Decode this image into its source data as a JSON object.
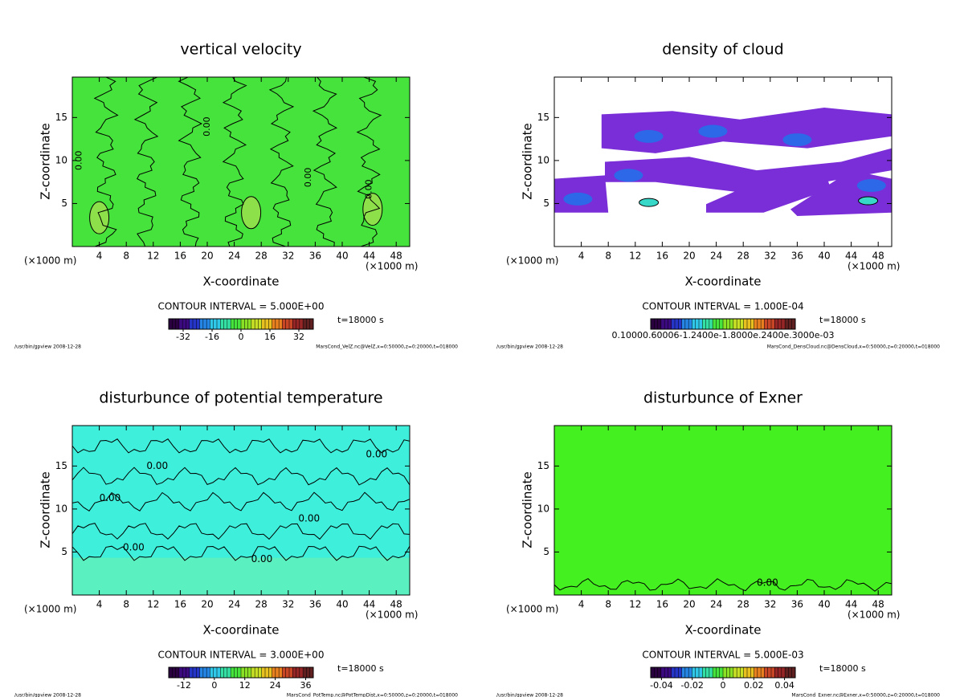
{
  "chart_data": [
    {
      "type": "contour",
      "title": "vertical velocity",
      "xlabel": "X-coordinate",
      "ylabel": "Z-coordinate",
      "x_unit_label": "(×1000 m)",
      "xlim": [
        0,
        50
      ],
      "xticks": [
        4,
        8,
        12,
        16,
        20,
        24,
        28,
        32,
        36,
        40,
        44,
        48
      ],
      "ylim": [
        0,
        19.7
      ],
      "yticks": [
        5,
        10,
        15
      ],
      "field_color": "#46e33c",
      "contour_label": "0.00",
      "contour_interval": "CONTOUR INTERVAL = 5.000E+00",
      "time_label": "t=18000 s",
      "colorbar": {
        "clim": [
          -40,
          40
        ],
        "ticks": [
          -32,
          -16,
          0,
          16,
          32
        ],
        "colors": [
          "#2a0040",
          "#3c0a80",
          "#2535c8",
          "#2585e5",
          "#30c8e8",
          "#35e0a5",
          "#46e33c",
          "#8ae025",
          "#c8e025",
          "#e8c020",
          "#e88020",
          "#c84525",
          "#962525",
          "#602020"
        ]
      },
      "footer_left": "/usr/bin/gpview  2008-12-28",
      "footer_right": "MarsCond_VelZ.nc@VelZ,x=0:50000,z=0:20000,t=018000"
    },
    {
      "type": "contour",
      "title": "density of cloud",
      "xlabel": "X-coordinate",
      "ylabel": "Z-coordinate",
      "x_unit_label": "(×1000 m)",
      "xlim": [
        0,
        50
      ],
      "xticks": [
        4,
        8,
        12,
        16,
        20,
        24,
        28,
        32,
        36,
        40,
        44,
        48
      ],
      "ylim": [
        0,
        19.7
      ],
      "yticks": [
        5,
        10,
        15
      ],
      "field_color": "#ffffff",
      "cloud_color": "#7a2ed8",
      "contour_interval": "CONTOUR INTERVAL = 1.000E-04",
      "time_label": "t=18000 s",
      "colorbar": {
        "tick_text": "0.10000.60006-1.2400e-1.8000e.2400e.3000e-03",
        "colors": [
          "#2a0040",
          "#3c0a80",
          "#2535c8",
          "#2585e5",
          "#30c8e8",
          "#35e0a5",
          "#46e33c",
          "#8ae025",
          "#c8e025",
          "#e8c020",
          "#e88020",
          "#c84525",
          "#962525",
          "#602020"
        ]
      },
      "footer_left": "/usr/bin/gpview  2008-12-28",
      "footer_right": "MarsCond_DensCloud.nc@DensCloud,x=0:50000,z=0:20000,t=018000"
    },
    {
      "type": "contour",
      "title": "disturbunce of potential temperature",
      "xlabel": "X-coordinate",
      "ylabel": "Z-coordinate",
      "x_unit_label": "(×1000 m)",
      "xlim": [
        0,
        50
      ],
      "xticks": [
        4,
        8,
        12,
        16,
        20,
        24,
        28,
        32,
        36,
        40,
        44,
        48
      ],
      "ylim": [
        0,
        19.7
      ],
      "yticks": [
        5,
        10,
        15
      ],
      "field_color": "#3ef0dc",
      "contour_label": "0.00",
      "contour_interval": "CONTOUR INTERVAL = 3.000E+00",
      "time_label": "t=18000 s",
      "colorbar": {
        "clim": [
          -18,
          39
        ],
        "ticks": [
          -12,
          0,
          12,
          24,
          36
        ],
        "colors": [
          "#2a0040",
          "#3c0a80",
          "#2535c8",
          "#2585e5",
          "#30c8e8",
          "#35e0a5",
          "#46e33c",
          "#8ae025",
          "#c8e025",
          "#e8c020",
          "#e88020",
          "#c84525",
          "#962525",
          "#602020"
        ]
      },
      "footer_left": "/usr/bin/gpview  2008-12-28",
      "footer_right": "MarsCond_PotTemp.nc@PotTempDist,x=0:50000,z=0:20000,t=018000"
    },
    {
      "type": "contour",
      "title": "disturbunce of Exner",
      "xlabel": "X-coordinate",
      "ylabel": "Z-coordinate",
      "x_unit_label": "(×1000 m)",
      "xlim": [
        0,
        50
      ],
      "xticks": [
        4,
        8,
        12,
        16,
        20,
        24,
        28,
        32,
        36,
        40,
        44,
        48
      ],
      "ylim": [
        0,
        19.7
      ],
      "yticks": [
        5,
        10,
        15
      ],
      "field_color": "#44f020",
      "contour_label": "0.00",
      "contour_interval": "CONTOUR INTERVAL = 5.000E-03",
      "time_label": "t=18000 s",
      "colorbar": {
        "clim": [
          -0.047,
          0.047
        ],
        "ticks": [
          -0.04,
          -0.02,
          0,
          0.02,
          0.04
        ],
        "colors": [
          "#2a0040",
          "#3c0a80",
          "#2535c8",
          "#2585e5",
          "#30c8e8",
          "#35e0a5",
          "#46e33c",
          "#8ae025",
          "#c8e025",
          "#e8c020",
          "#e88020",
          "#c84525",
          "#962525",
          "#602020"
        ]
      },
      "footer_left": "/usr/bin/gpview  2008-12-28",
      "footer_right": "MarsCond_Exner.nc@Exner,x=0:50000,z=0:20000,t=018000"
    }
  ]
}
